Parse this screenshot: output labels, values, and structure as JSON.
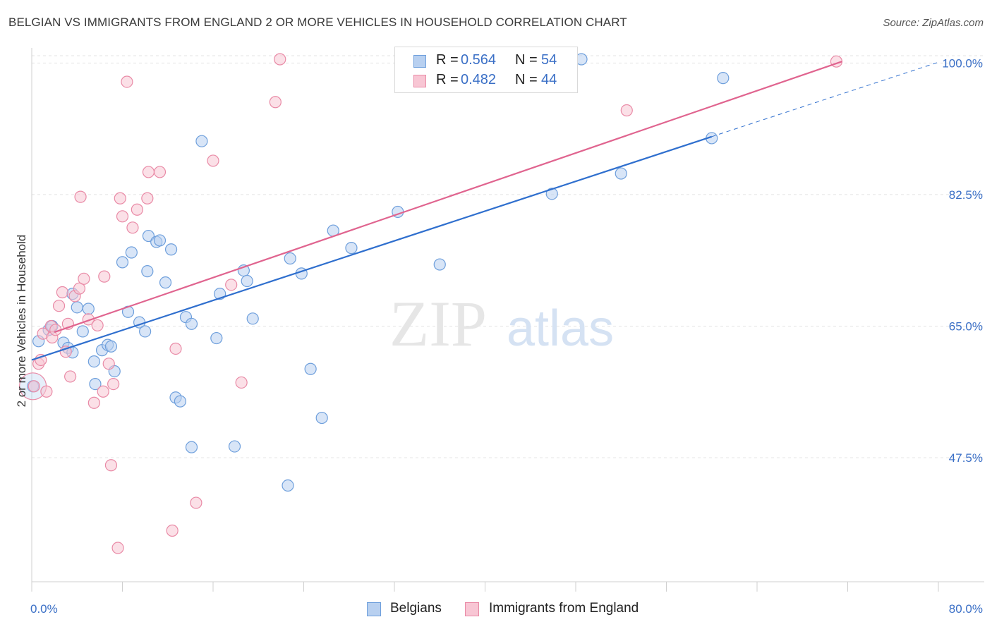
{
  "title": "BELGIAN VS IMMIGRANTS FROM ENGLAND 2 OR MORE VEHICLES IN HOUSEHOLD CORRELATION CHART",
  "source": "Source: ZipAtlas.com",
  "watermark": {
    "zip": "ZIP",
    "atlas": "atlas"
  },
  "legend_top": {
    "rows": [
      {
        "r_label": "R =",
        "r_value": "0.564",
        "n_label": "N =",
        "n_value": "54"
      },
      {
        "r_label": "R =",
        "r_value": "0.482",
        "n_label": "N =",
        "n_value": "44"
      }
    ]
  },
  "legend_bottom": [
    {
      "label": "Belgians"
    },
    {
      "label": "Immigrants from England"
    }
  ],
  "colors": {
    "blue_fill": "#b8d0f0",
    "blue_stroke": "#6e9fdc",
    "blue_line": "#2f6fce",
    "pink_fill": "#f8c6d4",
    "pink_stroke": "#e98aa6",
    "pink_line": "#e0648f",
    "tick_text": "#3a6fc6",
    "grid": "#e3e3e3"
  },
  "chart_data": {
    "type": "scatter",
    "title": "BELGIAN VS IMMIGRANTS FROM ENGLAND 2 OR MORE VEHICLES IN HOUSEHOLD CORRELATION CHART",
    "xlabel": "",
    "ylabel": "2 or more Vehicles in Household",
    "xlim": [
      0,
      80
    ],
    "ylim": [
      31,
      102
    ],
    "x_tick_labels": [
      "0.0%",
      "80.0%"
    ],
    "y_ticks": [
      47.5,
      65.0,
      82.5,
      100.0
    ],
    "y_tick_labels": [
      "47.5%",
      "65.0%",
      "82.5%",
      "100.0%"
    ],
    "grid": true,
    "legend_position": "top-center",
    "series": [
      {
        "name": "Belgians",
        "color": "#6e9fdc",
        "points": [
          [
            0.1,
            57.0
          ],
          [
            0.6,
            63.0
          ],
          [
            1.5,
            64.5
          ],
          [
            1.8,
            65.0
          ],
          [
            2.8,
            62.8
          ],
          [
            3.2,
            62.1
          ],
          [
            3.6,
            61.5
          ],
          [
            3.6,
            69.3
          ],
          [
            4.0,
            67.5
          ],
          [
            5.0,
            67.3
          ],
          [
            4.5,
            64.3
          ],
          [
            5.5,
            60.3
          ],
          [
            5.6,
            57.3
          ],
          [
            6.2,
            61.8
          ],
          [
            6.7,
            62.5
          ],
          [
            7.0,
            62.3
          ],
          [
            7.3,
            59.0
          ],
          [
            8.0,
            73.5
          ],
          [
            8.5,
            66.9
          ],
          [
            8.8,
            74.8
          ],
          [
            9.5,
            65.5
          ],
          [
            10.0,
            64.3
          ],
          [
            10.2,
            72.3
          ],
          [
            10.3,
            77.0
          ],
          [
            11.0,
            76.2
          ],
          [
            11.3,
            76.4
          ],
          [
            11.8,
            70.8
          ],
          [
            12.3,
            75.2
          ],
          [
            12.7,
            55.5
          ],
          [
            13.1,
            55.0
          ],
          [
            13.6,
            66.2
          ],
          [
            14.1,
            65.3
          ],
          [
            14.1,
            48.9
          ],
          [
            15.0,
            89.6
          ],
          [
            16.3,
            63.4
          ],
          [
            16.6,
            69.3
          ],
          [
            17.9,
            49.0
          ],
          [
            18.7,
            72.4
          ],
          [
            19.0,
            71.0
          ],
          [
            19.5,
            66.0
          ],
          [
            22.8,
            74.0
          ],
          [
            22.6,
            43.8
          ],
          [
            23.8,
            72.0
          ],
          [
            24.6,
            59.3
          ],
          [
            25.6,
            52.8
          ],
          [
            26.6,
            77.7
          ],
          [
            28.2,
            75.4
          ],
          [
            32.3,
            80.2
          ],
          [
            36.0,
            73.2
          ],
          [
            45.9,
            82.6
          ],
          [
            48.5,
            100.5
          ],
          [
            52.0,
            85.3
          ],
          [
            60.0,
            90.0
          ],
          [
            61.0,
            98.0
          ]
        ]
      },
      {
        "name": "Immigrants from England",
        "color": "#e98aa6",
        "points": [
          [
            0.2,
            57.0
          ],
          [
            0.6,
            60.0
          ],
          [
            0.8,
            60.5
          ],
          [
            1.0,
            64.0
          ],
          [
            1.3,
            56.3
          ],
          [
            1.7,
            65.0
          ],
          [
            1.8,
            63.5
          ],
          [
            2.1,
            64.5
          ],
          [
            2.4,
            67.7
          ],
          [
            2.7,
            69.5
          ],
          [
            3.0,
            61.6
          ],
          [
            3.2,
            65.3
          ],
          [
            3.4,
            58.3
          ],
          [
            3.8,
            69.0
          ],
          [
            4.2,
            70.0
          ],
          [
            4.3,
            82.2
          ],
          [
            4.6,
            71.3
          ],
          [
            5.0,
            65.9
          ],
          [
            5.5,
            54.8
          ],
          [
            5.8,
            65.1
          ],
          [
            6.3,
            56.3
          ],
          [
            6.4,
            71.6
          ],
          [
            6.8,
            60.0
          ],
          [
            7.0,
            46.5
          ],
          [
            7.2,
            57.3
          ],
          [
            7.6,
            35.5
          ],
          [
            7.8,
            82.0
          ],
          [
            8.0,
            79.6
          ],
          [
            8.4,
            97.5
          ],
          [
            8.9,
            78.1
          ],
          [
            9.3,
            80.5
          ],
          [
            10.2,
            82.0
          ],
          [
            10.3,
            85.5
          ],
          [
            11.3,
            85.5
          ],
          [
            12.4,
            37.8
          ],
          [
            12.7,
            62.0
          ],
          [
            14.5,
            41.5
          ],
          [
            16.0,
            87.0
          ],
          [
            17.6,
            70.5
          ],
          [
            18.5,
            57.5
          ],
          [
            21.5,
            94.8
          ],
          [
            21.9,
            100.5
          ],
          [
            52.5,
            93.7
          ],
          [
            71.0,
            100.2
          ]
        ]
      }
    ],
    "trendlines": [
      {
        "series": "Belgians",
        "x": [
          0,
          60
        ],
        "y": [
          60.5,
          90.2
        ],
        "style": "solid"
      },
      {
        "series": "Belgians",
        "x": [
          60,
          80
        ],
        "y": [
          90.2,
          100.1
        ],
        "style": "dashed"
      },
      {
        "series": "Immigrants from England",
        "x": [
          2.0,
          71.5
        ],
        "y": [
          64.2,
          100.2
        ],
        "style": "solid"
      }
    ]
  }
}
